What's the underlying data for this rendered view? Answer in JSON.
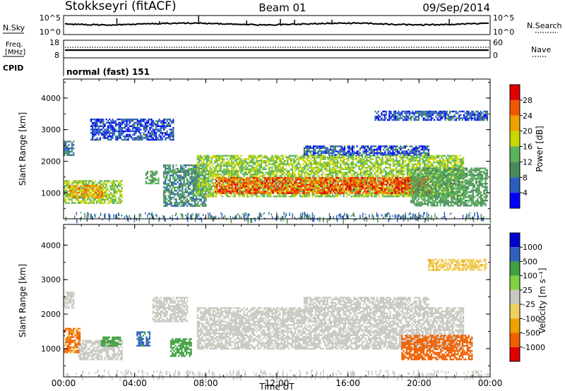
{
  "header": {
    "station": "Stokkseyri (fitACF)",
    "beam": "Beam 01",
    "date": "09/Sep/2014"
  },
  "noise_panel": {
    "left_label": "N.Sky",
    "right_label": "N.Search",
    "left_ticks": [
      "10^5",
      "10^0"
    ],
    "right_ticks": [
      "10^5",
      "10^0"
    ]
  },
  "freq_panel": {
    "label_line1": "Freq.",
    "label_line2": "[MHz]",
    "left_ticks": [
      "18",
      "8"
    ],
    "right_ticks": [
      "60",
      "0"
    ],
    "right_label": "Nave"
  },
  "cpid_panel": {
    "label": "CPID",
    "value": "normal (fast) 151"
  },
  "x_axis": {
    "label": "Time UT",
    "ticks": [
      "00:00",
      "04:00",
      "08:00",
      "12:00",
      "16:00",
      "20:00",
      "00:00"
    ]
  },
  "colors": {
    "power_scale": [
      "#0000ff",
      "#2a5fc0",
      "#4a8a5a",
      "#5ab45a",
      "#c8d800",
      "#f0a000",
      "#f05800",
      "#e00000"
    ],
    "velocity_scale": [
      "#0000d0",
      "#3060c0",
      "#40a040",
      "#80d040",
      "#c8c8c0",
      "#f0d060",
      "#f0a000",
      "#f06000",
      "#e00000"
    ]
  },
  "chart_data": [
    {
      "type": "heatmap",
      "panel": "power",
      "xlabel": "",
      "ylabel": "Slant Range [km]",
      "xlim_hours": [
        0,
        24
      ],
      "ylim": [
        180,
        4600
      ],
      "yticks": [
        "1000",
        "2000",
        "3000",
        "4000"
      ],
      "colorbar": {
        "label": "Power [dB]",
        "ticks": [
          "4",
          "8",
          "12",
          "16",
          "20",
          "24",
          "28"
        ]
      },
      "echo_regions": [
        {
          "x": [
            0.0,
            0.6
          ],
          "y": [
            2200,
            2650
          ],
          "value_db": 8
        },
        {
          "x": [
            0.0,
            3.3
          ],
          "y": [
            650,
            1400
          ],
          "value_db": 16
        },
        {
          "x": [
            0.3,
            2.2
          ],
          "y": [
            850,
            1250
          ],
          "value_db": 22
        },
        {
          "x": [
            1.5,
            6.2
          ],
          "y": [
            2700,
            3350
          ],
          "value_db": 5
        },
        {
          "x": [
            4.6,
            5.3
          ],
          "y": [
            1300,
            1700
          ],
          "value_db": 12
        },
        {
          "x": [
            5.6,
            8.0
          ],
          "y": [
            600,
            1900
          ],
          "value_db": 10
        },
        {
          "x": [
            7.5,
            22.5
          ],
          "y": [
            900,
            2200
          ],
          "value_db": 16
        },
        {
          "x": [
            8.5,
            20.5
          ],
          "y": [
            1000,
            1500
          ],
          "value_db": 26
        },
        {
          "x": [
            13.5,
            20.5
          ],
          "y": [
            2200,
            2500
          ],
          "value_db": 6
        },
        {
          "x": [
            17.5,
            23.8
          ],
          "y": [
            3300,
            3600
          ],
          "value_db": 6
        },
        {
          "x": [
            19.5,
            23.8
          ],
          "y": [
            600,
            1800
          ],
          "value_db": 12
        }
      ]
    },
    {
      "type": "heatmap",
      "panel": "velocity",
      "xlabel": "Time UT",
      "ylabel": "Slant Range [km]",
      "xlim_hours": [
        0,
        24
      ],
      "ylim": [
        180,
        4600
      ],
      "yticks": [
        "1000",
        "2000",
        "3000",
        "4000"
      ],
      "colorbar": {
        "label": "Velocity [m s⁻¹]",
        "ticks": [
          "1000",
          "500",
          "100",
          "25",
          "-25",
          "-100",
          "-500",
          "-1000"
        ]
      },
      "echo_regions": [
        {
          "x": [
            0.0,
            0.6
          ],
          "y": [
            2200,
            2650
          ],
          "value_ms": -10
        },
        {
          "x": [
            0.0,
            0.9
          ],
          "y": [
            900,
            1600
          ],
          "value_ms": -300
        },
        {
          "x": [
            0.8,
            3.3
          ],
          "y": [
            700,
            1250
          ],
          "value_ms": -10
        },
        {
          "x": [
            2.1,
            3.2
          ],
          "y": [
            1100,
            1350
          ],
          "value_ms": 150
        },
        {
          "x": [
            4.1,
            4.8
          ],
          "y": [
            1100,
            1500
          ],
          "value_ms": 300
        },
        {
          "x": [
            5.0,
            7.0
          ],
          "y": [
            1800,
            2500
          ],
          "value_ms": -10
        },
        {
          "x": [
            6.0,
            7.2
          ],
          "y": [
            800,
            1300
          ],
          "value_ms": 150
        },
        {
          "x": [
            7.5,
            22.5
          ],
          "y": [
            1000,
            2200
          ],
          "value_ms": 0
        },
        {
          "x": [
            13.5,
            20.5
          ],
          "y": [
            2200,
            2500
          ],
          "value_ms": -10
        },
        {
          "x": [
            19.0,
            23.0
          ],
          "y": [
            700,
            1400
          ],
          "value_ms": -400
        },
        {
          "x": [
            20.5,
            23.8
          ],
          "y": [
            3300,
            3600
          ],
          "value_ms": -50
        }
      ]
    }
  ]
}
